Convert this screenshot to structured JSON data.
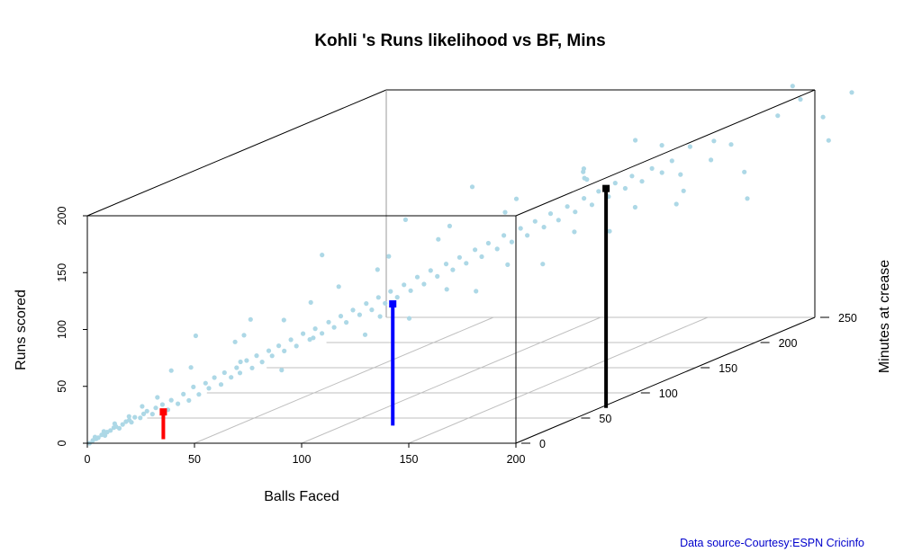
{
  "chart_data": {
    "type": "scatter",
    "title": "Kohli 's Runs likelihood vs BF, Mins",
    "xlabel": "Balls Faced",
    "ylabel": "Runs scored",
    "zlabel": "Minutes at crease",
    "xlim": [
      0,
      200
    ],
    "ylim": [
      0,
      200
    ],
    "zlim": [
      0,
      250
    ],
    "x_ticks": [
      0,
      50,
      100,
      150,
      200
    ],
    "y_ticks": [
      0,
      50,
      100,
      150,
      200
    ],
    "z_ticks": [
      0,
      50,
      100,
      150,
      200,
      250
    ],
    "grid": true,
    "point_color": "#add8e6",
    "highlight_markers": [
      {
        "color": "#ff0000",
        "bf": 31,
        "mins": 8,
        "runs": 24
      },
      {
        "color": "#0000ff",
        "bf": 123,
        "mins": 35,
        "runs": 107
      },
      {
        "color": "#000000",
        "bf": 203,
        "mins": 70,
        "runs": 193
      }
    ],
    "points": [
      [
        1,
        0,
        0
      ],
      [
        2,
        2,
        1
      ],
      [
        3,
        3,
        2
      ],
      [
        4,
        4,
        2
      ],
      [
        5,
        6,
        3
      ],
      [
        6,
        5,
        4
      ],
      [
        7,
        8,
        4
      ],
      [
        8,
        9,
        5
      ],
      [
        9,
        11,
        6
      ],
      [
        10,
        12,
        6
      ],
      [
        11,
        10,
        7
      ],
      [
        12,
        13,
        8
      ],
      [
        13,
        15,
        9
      ],
      [
        14,
        16,
        10
      ],
      [
        15,
        14,
        10
      ],
      [
        16,
        18,
        11
      ],
      [
        18,
        17,
        12
      ],
      [
        19,
        20,
        13
      ],
      [
        20,
        22,
        14
      ],
      [
        22,
        19,
        15
      ],
      [
        23,
        24,
        16
      ],
      [
        25,
        26,
        18
      ],
      [
        27,
        21,
        19
      ],
      [
        28,
        29,
        20
      ],
      [
        30,
        25,
        22
      ],
      [
        32,
        33,
        23
      ],
      [
        34,
        27,
        24
      ],
      [
        35,
        38,
        26
      ],
      [
        37,
        31,
        27
      ],
      [
        39,
        40,
        29
      ],
      [
        40,
        35,
        30
      ],
      [
        42,
        44,
        31
      ],
      [
        44,
        37,
        33
      ],
      [
        45,
        47,
        34
      ],
      [
        47,
        42,
        36
      ],
      [
        49,
        50,
        37
      ],
      [
        50,
        45,
        38
      ],
      [
        52,
        55,
        40
      ],
      [
        54,
        48,
        41
      ],
      [
        55,
        58,
        43
      ],
      [
        57,
        52,
        44
      ],
      [
        59,
        61,
        46
      ],
      [
        60,
        56,
        47
      ],
      [
        62,
        64,
        49
      ],
      [
        64,
        59,
        50
      ],
      [
        66,
        68,
        52
      ],
      [
        68,
        62,
        53
      ],
      [
        70,
        72,
        55
      ],
      [
        72,
        66,
        57
      ],
      [
        74,
        75,
        58
      ],
      [
        76,
        70,
        60
      ],
      [
        78,
        79,
        62
      ],
      [
        80,
        74,
        63
      ],
      [
        82,
        83,
        65
      ],
      [
        84,
        77,
        66
      ],
      [
        86,
        87,
        68
      ],
      [
        88,
        82,
        70
      ],
      [
        90,
        91,
        72
      ],
      [
        92,
        85,
        73
      ],
      [
        94,
        95,
        75
      ],
      [
        96,
        89,
        77
      ],
      [
        98,
        99,
        78
      ],
      [
        100,
        93,
        80
      ],
      [
        102,
        103,
        82
      ],
      [
        104,
        97,
        84
      ],
      [
        106,
        108,
        86
      ],
      [
        108,
        101,
        88
      ],
      [
        110,
        112,
        90
      ],
      [
        112,
        106,
        92
      ],
      [
        115,
        116,
        94
      ],
      [
        117,
        110,
        96
      ],
      [
        119,
        120,
        98
      ],
      [
        121,
        114,
        100
      ],
      [
        124,
        125,
        102
      ],
      [
        126,
        118,
        104
      ],
      [
        128,
        129,
        106
      ],
      [
        131,
        123,
        108
      ],
      [
        133,
        134,
        110
      ],
      [
        135,
        127,
        113
      ],
      [
        138,
        138,
        115
      ],
      [
        140,
        131,
        117
      ],
      [
        142,
        142,
        120
      ],
      [
        145,
        136,
        122
      ],
      [
        147,
        147,
        124
      ],
      [
        149,
        140,
        127
      ],
      [
        152,
        151,
        129
      ],
      [
        154,
        145,
        132
      ],
      [
        157,
        156,
        134
      ],
      [
        159,
        149,
        137
      ],
      [
        161,
        160,
        139
      ],
      [
        164,
        154,
        142
      ],
      [
        166,
        165,
        144
      ],
      [
        169,
        159,
        147
      ],
      [
        171,
        169,
        149
      ],
      [
        174,
        163,
        152
      ],
      [
        177,
        173,
        155
      ],
      [
        180,
        168,
        158
      ],
      [
        183,
        177,
        161
      ],
      [
        40,
        60,
        15
      ],
      [
        55,
        78,
        25
      ],
      [
        60,
        40,
        55
      ],
      [
        75,
        95,
        30
      ],
      [
        85,
        60,
        80
      ],
      [
        95,
        120,
        40
      ],
      [
        100,
        70,
        90
      ],
      [
        110,
        140,
        55
      ],
      [
        120,
        85,
        110
      ],
      [
        130,
        160,
        70
      ],
      [
        140,
        100,
        130
      ],
      [
        150,
        175,
        90
      ],
      [
        160,
        120,
        150
      ],
      [
        170,
        190,
        110
      ],
      [
        180,
        135,
        170
      ],
      [
        190,
        200,
        140
      ],
      [
        195,
        150,
        200
      ],
      [
        200,
        183,
        180
      ],
      [
        185,
        165,
        190
      ],
      [
        175,
        140,
        185
      ],
      [
        165,
        180,
        120
      ],
      [
        205,
        195,
        210
      ],
      [
        210,
        205,
        220
      ],
      [
        215,
        185,
        230
      ],
      [
        198,
        210,
        235
      ],
      [
        188,
        120,
        215
      ],
      [
        178,
        175,
        205
      ],
      [
        168,
        150,
        195
      ],
      [
        158,
        130,
        175
      ],
      [
        148,
        175,
        150
      ],
      [
        138,
        115,
        160
      ],
      [
        128,
        150,
        120
      ],
      [
        118,
        95,
        140
      ],
      [
        108,
        135,
        100
      ],
      [
        98,
        80,
        125
      ],
      [
        88,
        115,
        85
      ],
      [
        78,
        65,
        105
      ],
      [
        68,
        95,
        65
      ],
      [
        58,
        55,
        85
      ],
      [
        48,
        75,
        45
      ],
      [
        38,
        45,
        60
      ],
      [
        28,
        55,
        20
      ],
      [
        26,
        35,
        12
      ],
      [
        20,
        28,
        10
      ],
      [
        15,
        20,
        8
      ],
      [
        10,
        15,
        5
      ],
      [
        6,
        9,
        3
      ],
      [
        3,
        5,
        1
      ],
      [
        45,
        90,
        10
      ],
      [
        65,
        100,
        20
      ],
      [
        90,
        150,
        35
      ],
      [
        115,
        170,
        60
      ],
      [
        135,
        190,
        80
      ],
      [
        155,
        170,
        140
      ],
      [
        172,
        200,
        150
      ],
      [
        192,
        190,
        160
      ],
      [
        212,
        160,
        240
      ],
      [
        220,
        200,
        245
      ]
    ]
  },
  "source_text": "Data source-Courtesy:ESPN Cricinfo"
}
